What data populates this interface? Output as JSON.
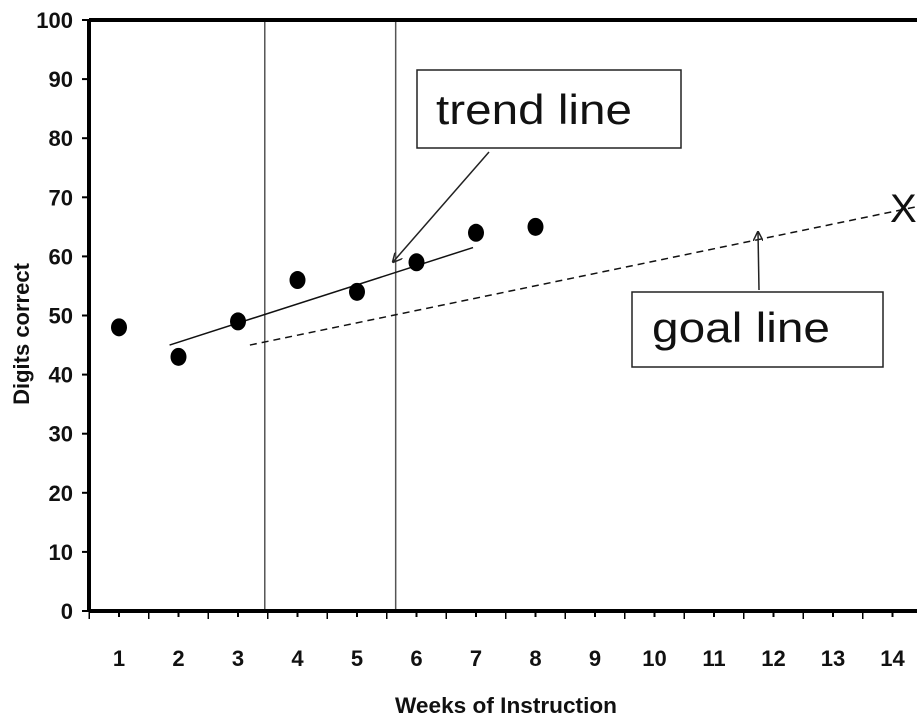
{
  "chart_data": {
    "type": "scatter",
    "title": "",
    "xlabel": "Weeks of Instruction",
    "ylabel": "Digits correct",
    "xlim": [
      0.5,
      14.5
    ],
    "ylim": [
      0,
      100
    ],
    "x_ticks": [
      1,
      2,
      3,
      4,
      5,
      6,
      7,
      8,
      9,
      10,
      11,
      12,
      13,
      14
    ],
    "y_ticks": [
      0,
      10,
      20,
      30,
      40,
      50,
      60,
      70,
      80,
      90,
      100
    ],
    "grid": false,
    "points": [
      {
        "x": 1,
        "y": 48
      },
      {
        "x": 2,
        "y": 43
      },
      {
        "x": 3,
        "y": 49
      },
      {
        "x": 4,
        "y": 56
      },
      {
        "x": 5,
        "y": 54
      },
      {
        "x": 6,
        "y": 59
      },
      {
        "x": 7,
        "y": 64
      },
      {
        "x": 8,
        "y": 65
      }
    ],
    "phase_lines_x": [
      3.45,
      5.65
    ],
    "trend_line": {
      "label": "trend line",
      "from": {
        "x": 1.85,
        "y": 45
      },
      "to": {
        "x": 6.95,
        "y": 61.5
      }
    },
    "goal_line": {
      "label": "goal line",
      "style": "dashed",
      "from": {
        "x": 3.2,
        "y": 45
      },
      "to": {
        "x": 14.45,
        "y": 68.5
      }
    },
    "goal_marker": {
      "label": "X",
      "x": 14.5,
      "y": 68.5
    }
  }
}
